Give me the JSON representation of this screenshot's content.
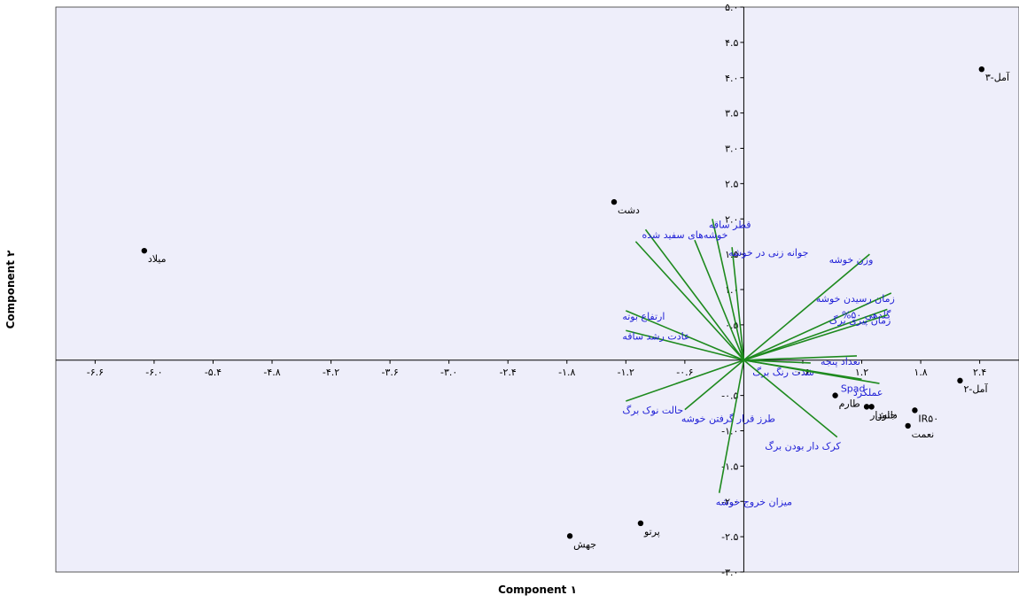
{
  "chart_data": {
    "type": "scatter",
    "subtype": "biplot",
    "xlabel": "Component ۱",
    "ylabel": "Component ۲",
    "xlim": [
      -7.0,
      2.8
    ],
    "ylim": [
      -3.0,
      5.0
    ],
    "x_ticks": [
      {
        "value": -6.6,
        "label": "-۶.۶"
      },
      {
        "value": -6.0,
        "label": "-۶.۰"
      },
      {
        "value": -5.4,
        "label": "-۵.۴"
      },
      {
        "value": -4.8,
        "label": "-۴.۸"
      },
      {
        "value": -4.2,
        "label": "-۴.۲"
      },
      {
        "value": -3.6,
        "label": "-۳.۶"
      },
      {
        "value": -3.0,
        "label": "-۳.۰"
      },
      {
        "value": -2.4,
        "label": "-۲.۴"
      },
      {
        "value": -1.8,
        "label": "-۱.۸"
      },
      {
        "value": -1.2,
        "label": "-۱.۲"
      },
      {
        "value": -0.6,
        "label": "-۰.۶"
      },
      {
        "value": 0.6,
        "label": "۰.۶"
      },
      {
        "value": 1.2,
        "label": "۱.۲"
      },
      {
        "value": 1.8,
        "label": "۱.۸"
      },
      {
        "value": 2.4,
        "label": "۲.۴"
      }
    ],
    "y_ticks": [
      {
        "value": 5.0,
        "label": "۵.۰"
      },
      {
        "value": 4.5,
        "label": "۴.۵"
      },
      {
        "value": 4.0,
        "label": "۴.۰"
      },
      {
        "value": 3.5,
        "label": "۳.۵"
      },
      {
        "value": 3.0,
        "label": "۳.۰"
      },
      {
        "value": 2.5,
        "label": "۲.۵"
      },
      {
        "value": 2.0,
        "label": "۲.۰"
      },
      {
        "value": 1.5,
        "label": "۱.۵"
      },
      {
        "value": 1.0,
        "label": "۱.۰"
      },
      {
        "value": 0.5,
        "label": "۰.۵"
      },
      {
        "value": -0.5,
        "label": "-۰.۵"
      },
      {
        "value": -1.0,
        "label": "-۱.۰"
      },
      {
        "value": -1.5,
        "label": "-۱.۵"
      },
      {
        "value": -2.0,
        "label": "-۲.۰"
      },
      {
        "value": -2.5,
        "label": "-۲.۵"
      },
      {
        "value": -3.0,
        "label": "-۳.۰"
      }
    ],
    "points": [
      {
        "label": "آمل-۳",
        "x": 2.42,
        "y": 4.12
      },
      {
        "label": "دشت",
        "x": -1.32,
        "y": 2.24
      },
      {
        "label": "میلاد",
        "x": -6.1,
        "y": 1.55
      },
      {
        "label": "آمل-۲",
        "x": 2.2,
        "y": -0.29
      },
      {
        "label": "IR۵۰",
        "x": 1.74,
        "y": -0.71
      },
      {
        "label": "نعمت",
        "x": 1.67,
        "y": -0.93
      },
      {
        "label": "طارم",
        "x": 0.93,
        "y": -0.5
      },
      {
        "label": "دانش",
        "x": 1.3,
        "y": -0.66
      },
      {
        "label": "جلودار",
        "x": 1.25,
        "y": -0.66
      },
      {
        "label": "پرتو",
        "x": -1.05,
        "y": -2.31
      },
      {
        "label": "جهش",
        "x": -1.77,
        "y": -2.49
      }
    ],
    "loadings": [
      {
        "label": "قطر ساقه",
        "x": -0.32,
        "y": 2.0
      },
      {
        "label": "خوشه‌های سفید شده",
        "x": -1.0,
        "y": 1.85
      },
      {
        "label": "جوانه زنی در خوشه",
        "x": -0.12,
        "y": 1.6
      },
      {
        "label": "",
        "x": -1.1,
        "y": 1.68
      },
      {
        "label": "",
        "x": -0.5,
        "y": 1.7
      },
      {
        "label": "وزن خوشه",
        "x": 1.28,
        "y": 1.5
      },
      {
        "label": "زمان رسیدن خوشه",
        "x": 1.5,
        "y": 0.95
      },
      {
        "label": "گلدهی ۵۰%",
        "x": 1.46,
        "y": 0.72
      },
      {
        "label": "زمان پیری برگ",
        "x": 1.46,
        "y": 0.64
      },
      {
        "label": "ارتفاع بوته",
        "x": -1.2,
        "y": 0.7
      },
      {
        "label": "عادت رشد ساقه",
        "x": -1.2,
        "y": 0.42
      },
      {
        "label": "تعداد پنجه",
        "x": 1.15,
        "y": 0.06
      },
      {
        "label": "شدت رنگ برگ",
        "x": 0.68,
        "y": -0.04
      },
      {
        "label": "Spad",
        "x": 1.2,
        "y": -0.27
      },
      {
        "label": "عملکرد",
        "x": 1.38,
        "y": -0.33
      },
      {
        "label": "کرک دار بودن برگ",
        "x": 0.95,
        "y": -1.09
      },
      {
        "label": "حالت نوک برگ",
        "x": -1.2,
        "y": -0.58
      },
      {
        "label": "طرز قرار گرفتن خوشه",
        "x": -0.6,
        "y": -0.7
      },
      {
        "label": "میزان خروج خوشه",
        "x": -0.25,
        "y": -1.88
      }
    ],
    "colors": {
      "plot_background": "#eeeefa",
      "loading_lines": "#1e8a1e",
      "loading_labels": "#1f1fd6",
      "points": "#000000"
    }
  }
}
